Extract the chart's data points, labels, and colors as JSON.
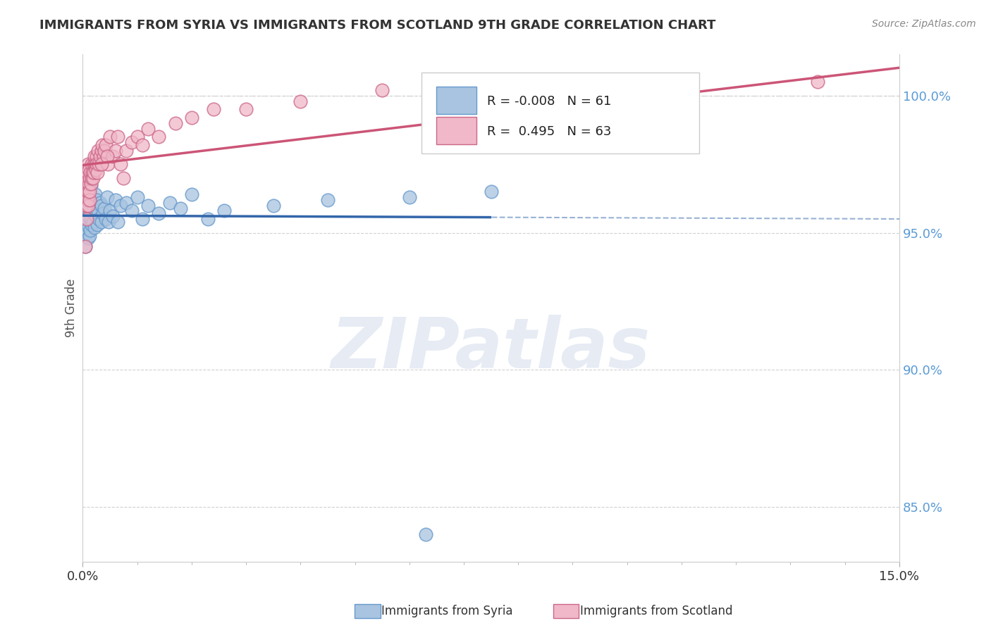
{
  "title": "IMMIGRANTS FROM SYRIA VS IMMIGRANTS FROM SCOTLAND 9TH GRADE CORRELATION CHART",
  "source": "Source: ZipAtlas.com",
  "ylabel": "9th Grade",
  "xlim": [
    0.0,
    15.0
  ],
  "ylim": [
    83.0,
    101.5
  ],
  "x_tick_labels": [
    "0.0%",
    "15.0%"
  ],
  "y_ticks": [
    85.0,
    90.0,
    95.0,
    100.0
  ],
  "y_tick_labels": [
    "85.0%",
    "90.0%",
    "95.0%",
    "100.0%"
  ],
  "syria_color": "#a8c4e0",
  "scotland_color": "#f0b8c8",
  "syria_edge_color": "#6699cc",
  "scotland_edge_color": "#cc6688",
  "trend_syria_color": "#3366aa",
  "trend_scotland_color": "#cc5577",
  "R_syria": -0.008,
  "N_syria": 61,
  "R_scotland": 0.495,
  "N_scotland": 63,
  "watermark": "ZIPatlas",
  "background_color": "#ffffff",
  "grid_color": "#aaaacc",
  "title_color": "#333333",
  "source_color": "#888888",
  "tick_color": "#5b9bd5",
  "legend_label_syria": "Immigrants from Syria",
  "legend_label_scotland": "Immigrants from Scotland",
  "syria_scatter_x": [
    0.05,
    0.06,
    0.07,
    0.08,
    0.08,
    0.09,
    0.09,
    0.1,
    0.1,
    0.1,
    0.11,
    0.11,
    0.12,
    0.12,
    0.13,
    0.14,
    0.15,
    0.15,
    0.16,
    0.17,
    0.18,
    0.19,
    0.2,
    0.2,
    0.21,
    0.22,
    0.23,
    0.24,
    0.25,
    0.27,
    0.28,
    0.3,
    0.32,
    0.34,
    0.35,
    0.37,
    0.4,
    0.42,
    0.45,
    0.48,
    0.5,
    0.55,
    0.6,
    0.65,
    0.7,
    0.8,
    0.9,
    1.0,
    1.1,
    1.2,
    1.4,
    1.6,
    1.8,
    2.0,
    2.3,
    2.6,
    3.5,
    4.5,
    6.0,
    7.5,
    6.3
  ],
  "syria_scatter_y": [
    94.5,
    95.8,
    96.2,
    95.0,
    96.5,
    95.5,
    96.8,
    94.8,
    95.6,
    97.0,
    95.2,
    96.0,
    94.9,
    95.8,
    96.3,
    95.1,
    95.5,
    96.7,
    95.3,
    96.1,
    95.8,
    95.4,
    96.0,
    95.7,
    95.9,
    95.2,
    96.4,
    95.6,
    96.2,
    95.3,
    95.8,
    95.5,
    96.1,
    95.4,
    96.0,
    95.7,
    95.9,
    95.5,
    96.3,
    95.4,
    95.8,
    95.6,
    96.2,
    95.4,
    96.0,
    96.1,
    95.8,
    96.3,
    95.5,
    96.0,
    95.7,
    96.1,
    95.9,
    96.4,
    95.5,
    95.8,
    96.0,
    96.2,
    96.3,
    96.5,
    84.0
  ],
  "scotland_scatter_x": [
    0.05,
    0.06,
    0.07,
    0.07,
    0.08,
    0.08,
    0.09,
    0.09,
    0.1,
    0.1,
    0.1,
    0.11,
    0.11,
    0.12,
    0.12,
    0.13,
    0.14,
    0.15,
    0.16,
    0.17,
    0.18,
    0.19,
    0.2,
    0.21,
    0.22,
    0.23,
    0.24,
    0.25,
    0.26,
    0.27,
    0.28,
    0.3,
    0.32,
    0.34,
    0.36,
    0.38,
    0.4,
    0.43,
    0.46,
    0.5,
    0.55,
    0.6,
    0.65,
    0.7,
    0.8,
    0.9,
    1.0,
    1.1,
    1.2,
    1.4,
    1.7,
    2.0,
    2.4,
    3.0,
    4.0,
    5.5,
    7.0,
    8.5,
    10.5,
    13.5,
    0.35,
    0.45,
    0.75
  ],
  "scotland_scatter_y": [
    94.5,
    96.0,
    96.5,
    95.5,
    96.8,
    97.0,
    96.2,
    97.2,
    96.5,
    97.5,
    96.0,
    96.8,
    97.3,
    96.2,
    97.0,
    96.5,
    97.2,
    96.8,
    97.0,
    97.5,
    97.2,
    97.0,
    97.5,
    97.2,
    97.8,
    97.5,
    97.3,
    97.8,
    97.5,
    97.2,
    98.0,
    97.5,
    97.8,
    98.0,
    98.2,
    97.8,
    98.0,
    98.2,
    97.5,
    98.5,
    97.8,
    98.0,
    98.5,
    97.5,
    98.0,
    98.3,
    98.5,
    98.2,
    98.8,
    98.5,
    99.0,
    99.2,
    99.5,
    99.5,
    99.8,
    100.2,
    100.3,
    100.5,
    100.2,
    100.5,
    97.5,
    97.8,
    97.0
  ]
}
